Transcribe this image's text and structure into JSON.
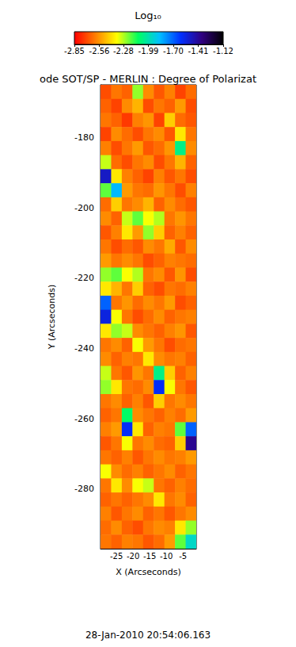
{
  "chart_data": {
    "type": "heatmap",
    "title": "ode SOT/SP - MERLIN : Degree of Polarizat",
    "x_label": "X (Arcseconds)",
    "y_label": "Y (Arcseconds)",
    "annotations": [
      "28-Jan-2010 20:54:06.163"
    ],
    "xlim": [
      -29.8,
      -1.0
    ],
    "xticks": [
      -25,
      -20,
      -15,
      -10,
      -5
    ],
    "ylim": [
      -297.0,
      -165.0
    ],
    "yticks": [
      -180,
      -200,
      -220,
      -240,
      -260,
      -280
    ],
    "grid": false,
    "colorbar": {
      "label": "Log₁₀",
      "range": [
        -2.85,
        -1.12
      ],
      "ticks": [
        -2.85,
        -2.56,
        -2.28,
        -1.99,
        {
          "value": -1.7,
          "label": "-1.70"
        },
        -1.41,
        -1.12
      ]
    },
    "x": [
      -28.2,
      -25.0,
      -21.8,
      -18.6,
      -15.4,
      -12.2,
      -9.0,
      -5.8,
      -2.6
    ],
    "y": [
      -167,
      -171,
      -175,
      -179,
      -183,
      -187,
      -191,
      -195,
      -199,
      -203,
      -207,
      -211,
      -215,
      -219,
      -223,
      -227,
      -231,
      -235,
      -239,
      -243,
      -247,
      -251,
      -255,
      -259,
      -263,
      -267,
      -271,
      -275,
      -279,
      -283,
      -287,
      -291,
      -295
    ],
    "values": [
      [
        -2.7,
        -2.62,
        -2.66,
        -2.25,
        -2.58,
        -2.68,
        -2.6,
        -2.72,
        -2.64
      ],
      [
        -2.66,
        -2.72,
        -2.58,
        -2.5,
        -2.7,
        -2.62,
        -2.66,
        -2.55,
        -2.7
      ],
      [
        -2.62,
        -2.66,
        -2.74,
        -2.6,
        -2.56,
        -2.72,
        -2.45,
        -2.64,
        -2.68
      ],
      [
        -2.72,
        -2.58,
        -2.64,
        -2.7,
        -2.62,
        -2.58,
        -2.68,
        -2.4,
        -2.62
      ],
      [
        -2.6,
        -2.7,
        -2.62,
        -2.55,
        -2.68,
        -2.64,
        -2.56,
        -2.05,
        -2.58
      ],
      [
        -2.3,
        -2.64,
        -2.7,
        -2.62,
        -2.58,
        -2.7,
        -2.62,
        -2.5,
        -2.66
      ],
      [
        -1.5,
        -2.4,
        -2.6,
        -2.66,
        -2.72,
        -2.6,
        -2.68,
        -2.62,
        -2.7
      ],
      [
        -2.2,
        -1.85,
        -2.55,
        -2.62,
        -2.64,
        -2.56,
        -2.62,
        -2.7,
        -2.6
      ],
      [
        -2.64,
        -2.45,
        -2.62,
        -2.58,
        -2.5,
        -2.66,
        -2.58,
        -2.64,
        -2.68
      ],
      [
        -2.58,
        -2.66,
        -2.3,
        -2.2,
        -2.35,
        -2.28,
        -2.62,
        -2.56,
        -2.62
      ],
      [
        -2.68,
        -2.6,
        -2.4,
        -2.55,
        -2.25,
        -2.45,
        -2.66,
        -2.6,
        -2.66
      ],
      [
        -2.62,
        -2.7,
        -2.64,
        -2.68,
        -2.58,
        -2.62,
        -2.52,
        -2.68,
        -2.58
      ],
      [
        -2.55,
        -2.62,
        -2.58,
        -2.62,
        -2.7,
        -2.66,
        -2.6,
        -2.62,
        -2.64
      ],
      [
        -2.25,
        -2.2,
        -2.35,
        -2.28,
        -2.62,
        -2.58,
        -2.68,
        -2.56,
        -2.7
      ],
      [
        -2.4,
        -2.5,
        -2.62,
        -2.45,
        -2.66,
        -2.7,
        -2.62,
        -2.64,
        -2.6
      ],
      [
        -1.7,
        -2.62,
        -2.56,
        -2.64,
        -2.58,
        -2.62,
        -2.55,
        -2.7,
        -2.66
      ],
      [
        -1.55,
        -2.35,
        -2.62,
        -2.7,
        -2.64,
        -2.58,
        -2.66,
        -2.62,
        -2.6
      ],
      [
        -2.4,
        -2.25,
        -2.3,
        -2.58,
        -2.62,
        -2.66,
        -2.6,
        -2.56,
        -2.68
      ],
      [
        -2.62,
        -2.58,
        -2.66,
        -2.35,
        -2.55,
        -2.62,
        -2.7,
        -2.64,
        -2.62
      ],
      [
        -2.58,
        -2.66,
        -2.6,
        -2.62,
        -2.4,
        -2.58,
        -2.62,
        -2.6,
        -2.66
      ],
      [
        -2.3,
        -2.62,
        -2.68,
        -2.56,
        -2.62,
        -2.05,
        -2.45,
        -2.66,
        -2.6
      ],
      [
        -2.25,
        -2.4,
        -2.62,
        -2.64,
        -2.58,
        -1.6,
        -2.35,
        -2.62,
        -2.68
      ],
      [
        -2.62,
        -2.58,
        -2.66,
        -2.6,
        -2.68,
        -2.45,
        -2.62,
        -2.58,
        -2.62
      ],
      [
        -2.66,
        -2.62,
        -2.1,
        -2.58,
        -2.62,
        -2.66,
        -2.6,
        -2.64,
        -2.55
      ],
      [
        -2.6,
        -2.55,
        -1.6,
        -2.4,
        -2.66,
        -2.6,
        -2.62,
        -2.2,
        -1.7
      ],
      [
        -2.68,
        -2.62,
        -2.35,
        -2.62,
        -2.58,
        -2.64,
        -2.66,
        -2.45,
        -1.4
      ],
      [
        -2.62,
        -2.66,
        -2.6,
        -2.68,
        -2.62,
        -2.58,
        -2.62,
        -2.6,
        -2.55
      ],
      [
        -2.35,
        -2.58,
        -2.64,
        -2.6,
        -2.66,
        -2.62,
        -2.58,
        -2.66,
        -2.62
      ],
      [
        -2.62,
        -2.4,
        -2.58,
        -2.35,
        -2.3,
        -2.62,
        -2.66,
        -2.6,
        -2.64
      ],
      [
        -2.66,
        -2.62,
        -2.66,
        -2.62,
        -2.58,
        -2.4,
        -2.62,
        -2.58,
        -2.66
      ],
      [
        -2.6,
        -2.68,
        -2.62,
        -2.58,
        -2.66,
        -2.62,
        -2.68,
        -2.62,
        -2.58
      ],
      [
        -2.64,
        -2.58,
        -2.66,
        -2.7,
        -2.62,
        -2.58,
        -2.6,
        -2.4,
        -2.25
      ],
      [
        -2.62,
        -2.66,
        -2.6,
        -2.62,
        -2.68,
        -2.64,
        -2.55,
        -2.2,
        -1.95
      ]
    ]
  }
}
